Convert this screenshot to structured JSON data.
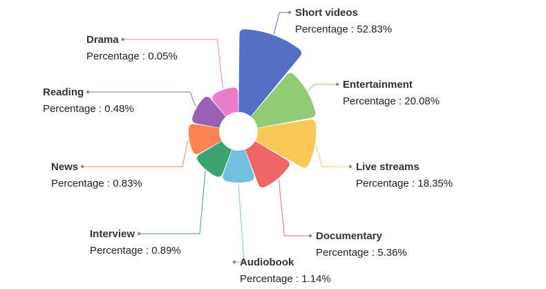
{
  "chart_data": {
    "type": "pie",
    "variant": "rose",
    "value_label_prefix": "Percentage",
    "slices": [
      {
        "name": "Short videos",
        "value": 52.83,
        "value_text": "52.83%",
        "color": "#5470c6"
      },
      {
        "name": "Entertainment",
        "value": 20.08,
        "value_text": "20.08%",
        "color": "#91cc75"
      },
      {
        "name": "Live streams",
        "value": 18.35,
        "value_text": "18.35%",
        "color": "#fac858"
      },
      {
        "name": "Documentary",
        "value": 5.36,
        "value_text": "5.36%",
        "color": "#ee6666"
      },
      {
        "name": "Audiobook",
        "value": 1.14,
        "value_text": "1.14%",
        "color": "#73c0de"
      },
      {
        "name": "Interview",
        "value": 0.89,
        "value_text": "0.89%",
        "color": "#3ba272"
      },
      {
        "name": "News",
        "value": 0.83,
        "value_text": "0.83%",
        "color": "#fc8452"
      },
      {
        "name": "Reading",
        "value": 0.48,
        "value_text": "0.48%",
        "color": "#9a60b4"
      },
      {
        "name": "Drama",
        "value": 0.05,
        "value_text": "0.05%",
        "color": "#ea7ccc"
      }
    ]
  }
}
